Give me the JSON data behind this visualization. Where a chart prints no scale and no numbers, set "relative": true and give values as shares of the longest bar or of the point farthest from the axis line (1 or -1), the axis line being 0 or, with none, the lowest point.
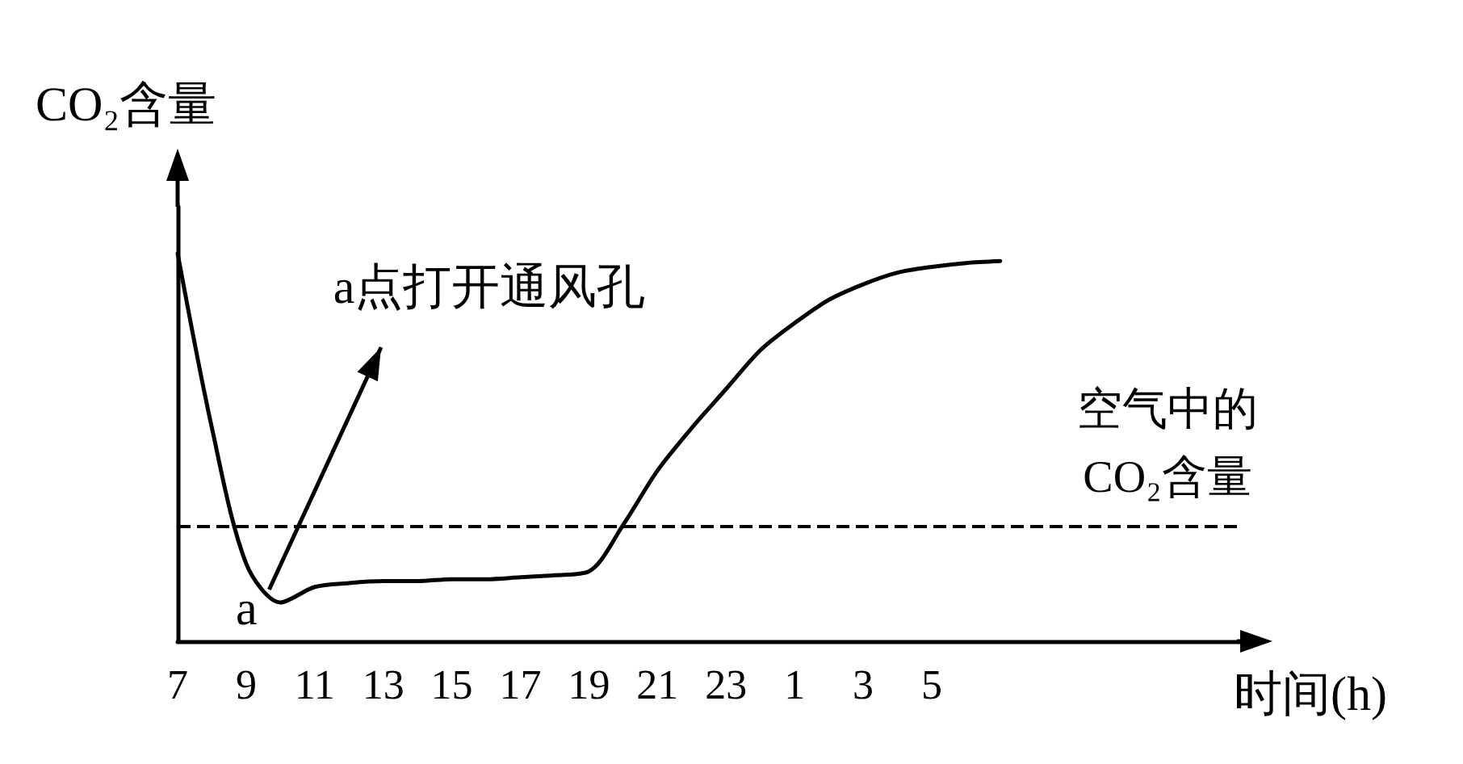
{
  "chart_data": {
    "type": "line",
    "relative": true,
    "ylabel": "CO₂含量",
    "xlabel": "时间(h)",
    "categories": [
      "7",
      null,
      "9",
      null,
      "11",
      null,
      "13",
      null,
      "15",
      null,
      "17",
      null,
      "19",
      null,
      "21",
      null,
      "23",
      null,
      "1",
      null,
      "3",
      null,
      "5",
      null,
      null,
      null,
      null,
      null,
      null,
      null,
      null,
      null
    ],
    "series": [
      {
        "color": "#000000",
        "values": [
          1.0,
          0.55,
          0.2,
          0.1,
          0.14,
          0.15,
          0.155,
          0.155,
          0.16,
          0.16,
          0.165,
          0.17,
          0.18,
          0.3,
          0.44,
          0.55,
          0.65,
          0.75,
          0.82,
          0.88,
          0.92,
          0.95,
          0.965,
          0.975,
          0.98,
          null,
          null,
          null,
          null,
          null,
          null,
          null
        ]
      }
    ],
    "ref_lines": [
      {
        "axis": "y",
        "value": 0.295,
        "label": "空气中的CO₂含量",
        "color": "#000000",
        "line_style": "dashed"
      }
    ],
    "annotations": [
      "a",
      "a点打开通风孔"
    ],
    "grid": false,
    "marker": "none",
    "line_style": "solid"
  }
}
